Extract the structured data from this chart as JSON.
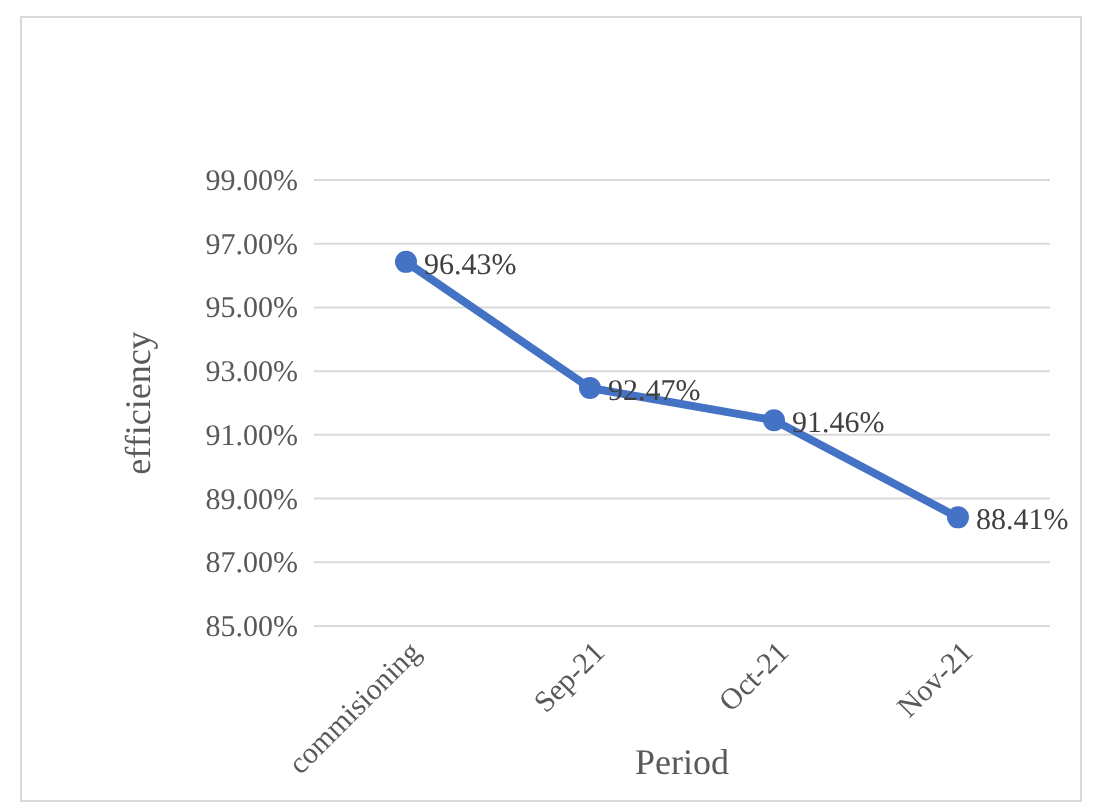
{
  "chart_data": {
    "type": "line",
    "xlabel": "Period",
    "ylabel": "efficiency",
    "categories": [
      "commisioning",
      "Sep-21",
      "Oct-21",
      "Nov-21"
    ],
    "series": [
      {
        "color": "#4472c4",
        "values": [
          96.43,
          92.47,
          91.46,
          88.41
        ],
        "value_labels": [
          "96.43%",
          "92.47%",
          "91.46%",
          "88.41%"
        ]
      }
    ],
    "ylim": [
      85,
      99
    ],
    "yticks": [
      {
        "value": 85,
        "label": "85.00%"
      },
      {
        "value": 87,
        "label": "87.00%"
      },
      {
        "value": 89,
        "label": "89.00%"
      },
      {
        "value": 91,
        "label": "91.00%"
      },
      {
        "value": 93,
        "label": "93.00%"
      },
      {
        "value": 95,
        "label": "95.00%"
      },
      {
        "value": 97,
        "label": "97.00%"
      },
      {
        "value": 99,
        "label": "99.00%"
      }
    ],
    "grid": "y",
    "marker": "circle",
    "line_style": "solid"
  }
}
